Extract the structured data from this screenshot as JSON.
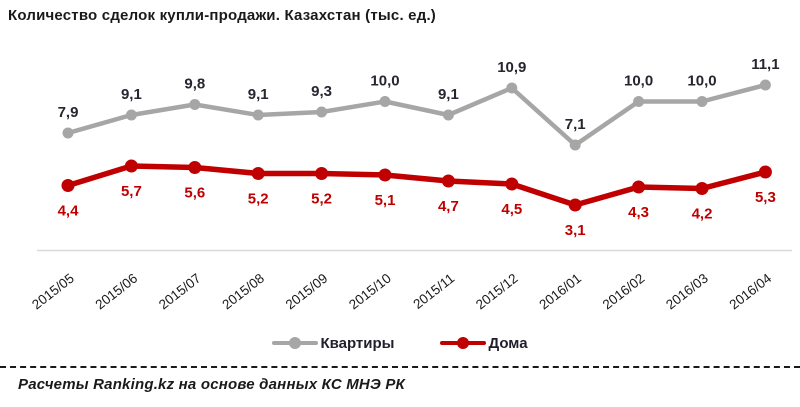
{
  "title": "Количество сделок купли-продажи. Казахстан (тыс. ед.)",
  "chart_data": {
    "type": "line",
    "categories": [
      "2015/05",
      "2015/06",
      "2015/07",
      "2015/08",
      "2015/09",
      "2015/10",
      "2015/11",
      "2015/12",
      "2016/01",
      "2016/02",
      "2016/03",
      "2016/04"
    ],
    "series": [
      {
        "name": "Квартиры",
        "color": "#a6a6a6",
        "label_color": "#262630",
        "label_position": "above",
        "values": [
          7.9,
          9.1,
          9.8,
          9.1,
          9.3,
          10.0,
          9.1,
          10.9,
          7.1,
          10.0,
          10.0,
          11.1
        ]
      },
      {
        "name": "Дома",
        "color": "#c00000",
        "label_color": "#c00000",
        "label_position": "below",
        "values": [
          4.4,
          5.7,
          5.6,
          5.2,
          5.2,
          5.1,
          4.7,
          4.5,
          3.1,
          4.3,
          4.2,
          5.3
        ]
      }
    ],
    "title": "Количество сделок купли-продажи. Казахстан (тыс. ед.)",
    "xlabel": "",
    "ylabel": "",
    "ylim": [
      0,
      13
    ],
    "grid": false,
    "legend_position": "bottom",
    "decimal_separator": ",",
    "axis_line_color": "#d9d9d9",
    "tick_label_color": "#1a1a1a"
  },
  "footer": {
    "text": "Расчеты Ranking.kz на основе данных КС МНЭ РК"
  }
}
